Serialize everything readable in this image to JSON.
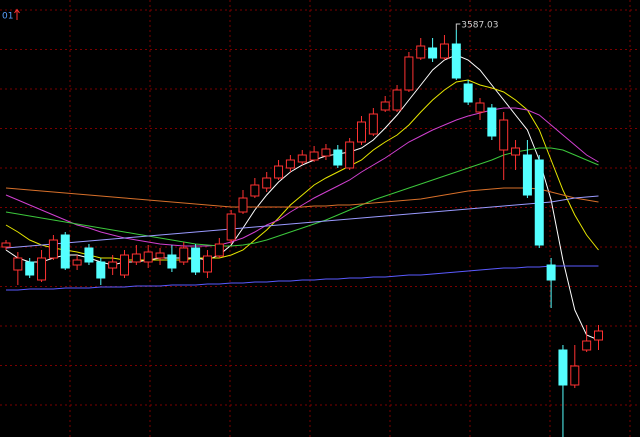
{
  "chart_data": {
    "type": "candlestick",
    "label": "01",
    "grid": true,
    "ylim": [
      2773,
      3647
    ],
    "categories": [
      null,
      null,
      null,
      null,
      null,
      null,
      null,
      null,
      null,
      null,
      null,
      null,
      null,
      null,
      null,
      null,
      null,
      null,
      null,
      null,
      null,
      null,
      null,
      null,
      null,
      null,
      null,
      null,
      null,
      null,
      null,
      null,
      null,
      null,
      null,
      null,
      null,
      null,
      null,
      null,
      null,
      null,
      null,
      null,
      null,
      null,
      null,
      null,
      null,
      null,
      null
    ],
    "up_color": "#ff3232",
    "down_color": "#54ffff",
    "open": [
      3153,
      3107,
      3123,
      3087,
      3131,
      3177,
      3117,
      3151,
      3123,
      3111,
      3097,
      3123,
      3123,
      3131,
      3137,
      3123,
      3151,
      3103,
      3135,
      3167,
      3223,
      3255,
      3271,
      3291,
      3311,
      3323,
      3327,
      3335,
      3347,
      3311,
      3363,
      3379,
      3427,
      3427,
      3467,
      3531,
      3551,
      3531,
      3559,
      3479,
      3423,
      3431,
      3347,
      3337,
      3337,
      3327,
      3117,
      2947,
      2877,
      2947,
      2967
    ],
    "high": [
      3167,
      3143,
      3131,
      3147,
      3177,
      3183,
      3137,
      3159,
      3131,
      3137,
      3147,
      3157,
      3157,
      3151,
      3157,
      3163,
      3159,
      3147,
      3171,
      3227,
      3267,
      3291,
      3303,
      3327,
      3337,
      3347,
      3355,
      3359,
      3357,
      3371,
      3415,
      3431,
      3455,
      3477,
      3543,
      3571,
      3571,
      3577,
      3587.03,
      3487,
      3451,
      3439,
      3423,
      3367,
      3367,
      3337,
      3131,
      2957,
      2957,
      2997,
      2997
    ],
    "low": [
      3147,
      3077,
      3091,
      3083,
      3127,
      3107,
      3107,
      3117,
      3077,
      3097,
      3091,
      3117,
      3111,
      3117,
      3103,
      3117,
      3097,
      3091,
      3131,
      3159,
      3219,
      3251,
      3263,
      3287,
      3303,
      3317,
      3323,
      3327,
      3311,
      3307,
      3357,
      3375,
      3423,
      3423,
      3463,
      3527,
      3523,
      3527,
      3487,
      3437,
      3407,
      3367,
      3287,
      3307,
      3251,
      3151,
      3031,
      2773,
      2871,
      2943,
      2947
    ],
    "close": [
      3161,
      3131,
      3097,
      3131,
      3167,
      3111,
      3127,
      3123,
      3091,
      3123,
      3137,
      3139,
      3143,
      3141,
      3111,
      3151,
      3103,
      3135,
      3159,
      3219,
      3251,
      3277,
      3291,
      3315,
      3327,
      3337,
      3343,
      3349,
      3317,
      3363,
      3403,
      3419,
      3443,
      3467,
      3533,
      3555,
      3531,
      3559,
      3491,
      3443,
      3441,
      3375,
      3407,
      3351,
      3257,
      3157,
      3087,
      2877,
      2915,
      2965,
      2985
    ],
    "series": [
      {
        "color": "#ffffff",
        "values": [
          3147,
          3131,
          3123,
          3123,
          3131,
          3137,
          3137,
          3131,
          3123,
          3117,
          3123,
          3123,
          3127,
          3131,
          3131,
          3131,
          3131,
          3127,
          3137,
          3157,
          3191,
          3227,
          3257,
          3283,
          3303,
          3317,
          3327,
          3335,
          3339,
          3343,
          3351,
          3367,
          3391,
          3417,
          3447,
          3477,
          3507,
          3527,
          3537,
          3527,
          3507,
          3477,
          3447,
          3417,
          3387,
          3327,
          3247,
          3127,
          3027,
          2977,
          2967
        ]
      },
      {
        "color": "#e6e600",
        "values": [
          3197,
          3183,
          3167,
          3157,
          3151,
          3147,
          3143,
          3137,
          3131,
          3131,
          3127,
          3127,
          3127,
          3127,
          3127,
          3127,
          3131,
          3131,
          3131,
          3137,
          3147,
          3167,
          3187,
          3211,
          3237,
          3257,
          3277,
          3291,
          3303,
          3315,
          3327,
          3347,
          3363,
          3377,
          3397,
          3423,
          3447,
          3467,
          3483,
          3487,
          3477,
          3471,
          3463,
          3447,
          3427,
          3387,
          3327,
          3267,
          3217,
          3177,
          3147
        ]
      },
      {
        "color": "#d040d0",
        "values": [
          3257,
          3247,
          3237,
          3227,
          3217,
          3207,
          3197,
          3191,
          3183,
          3177,
          3171,
          3167,
          3163,
          3159,
          3157,
          3155,
          3155,
          3155,
          3157,
          3163,
          3171,
          3183,
          3197,
          3207,
          3223,
          3237,
          3251,
          3263,
          3275,
          3287,
          3303,
          3317,
          3331,
          3347,
          3363,
          3375,
          3387,
          3397,
          3407,
          3415,
          3421,
          3427,
          3431,
          3431,
          3427,
          3417,
          3397,
          3377,
          3357,
          3337,
          3323
        ]
      },
      {
        "color": "#3cc83c",
        "values": [
          3223,
          3219,
          3215,
          3211,
          3207,
          3203,
          3199,
          3195,
          3191,
          3187,
          3183,
          3179,
          3175,
          3171,
          3167,
          3163,
          3159,
          3157,
          3155,
          3155,
          3157,
          3161,
          3167,
          3175,
          3183,
          3191,
          3199,
          3207,
          3217,
          3227,
          3237,
          3247,
          3255,
          3263,
          3271,
          3279,
          3287,
          3295,
          3303,
          3311,
          3319,
          3327,
          3337,
          3343,
          3347,
          3351,
          3351,
          3347,
          3337,
          3327,
          3317
        ]
      },
      {
        "color": "#d8702a",
        "values": [
          3271,
          3269,
          3267,
          3265,
          3263,
          3261,
          3259,
          3257,
          3255,
          3253,
          3251,
          3249,
          3247,
          3245,
          3243,
          3241,
          3239,
          3237,
          3235,
          3233,
          3233,
          3233,
          3233,
          3233,
          3233,
          3233,
          3235,
          3235,
          3237,
          3237,
          3239,
          3241,
          3243,
          3245,
          3247,
          3249,
          3253,
          3257,
          3261,
          3265,
          3267,
          3269,
          3271,
          3271,
          3271,
          3269,
          3263,
          3257,
          3251,
          3247,
          3243
        ]
      },
      {
        "color": "#9a9aff",
        "values": [
          3151,
          3153,
          3155,
          3157,
          3159,
          3161,
          3163,
          3165,
          3167,
          3169,
          3171,
          3173,
          3175,
          3177,
          3179,
          3181,
          3183,
          3185,
          3187,
          3189,
          3191,
          3193,
          3195,
          3197,
          3199,
          3201,
          3203,
          3205,
          3207,
          3209,
          3211,
          3213,
          3215,
          3217,
          3219,
          3221,
          3223,
          3225,
          3227,
          3229,
          3231,
          3233,
          3235,
          3237,
          3239,
          3241,
          3243,
          3247,
          3251,
          3253,
          3255
        ]
      },
      {
        "color": "#5a5aff",
        "values": [
          3067,
          3067,
          3069,
          3069,
          3069,
          3071,
          3071,
          3071,
          3073,
          3073,
          3073,
          3075,
          3075,
          3075,
          3077,
          3077,
          3077,
          3079,
          3079,
          3081,
          3081,
          3083,
          3083,
          3085,
          3085,
          3087,
          3087,
          3089,
          3089,
          3091,
          3091,
          3093,
          3093,
          3095,
          3097,
          3097,
          3099,
          3101,
          3103,
          3105,
          3107,
          3109,
          3111,
          3111,
          3113,
          3113,
          3115,
          3115,
          3115,
          3115,
          3115
        ]
      }
    ]
  }
}
